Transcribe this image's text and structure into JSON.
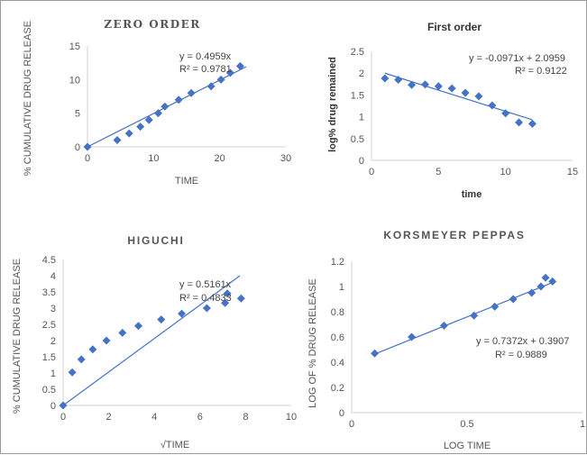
{
  "chart_data": [
    {
      "id": "zero",
      "type": "scatter",
      "title": "ZERO ORDER",
      "xlabel": "TIME",
      "ylabel": "% CUMULATIVE DRUG RELEASE",
      "xlim": [
        0,
        30
      ],
      "ylim": [
        0,
        15
      ],
      "xticks": [
        "0",
        "10",
        "20",
        "30"
      ],
      "yticks": [
        "0",
        "5",
        "10",
        "15"
      ],
      "series": [
        {
          "x": [
            0,
            4.5,
            6.3,
            8,
            9.3,
            10.7,
            11.7,
            13.8,
            15.7,
            18.7,
            20.2,
            21.6,
            23.1
          ],
          "y": [
            0,
            1,
            2,
            3,
            4,
            5,
            6,
            7,
            8,
            9,
            10,
            11,
            12
          ]
        }
      ],
      "trendline": {
        "slope": 0.4959,
        "intercept": 0,
        "x_range": [
          0,
          24
        ]
      },
      "equation": "y = 0.4959x",
      "r2": "R² = 0.9781",
      "grid": false
    },
    {
      "id": "first",
      "type": "scatter",
      "title": "First order",
      "xlabel": "time",
      "ylabel": "log% drug remained",
      "xlim": [
        0,
        15
      ],
      "ylim": [
        0,
        2.5
      ],
      "xticks": [
        "0",
        "5",
        "10",
        "15"
      ],
      "yticks": [
        "0",
        "0.5",
        "1",
        "1.5",
        "2",
        "2.5"
      ],
      "series": [
        {
          "x": [
            1,
            2,
            3,
            4,
            5,
            6,
            7,
            8,
            9,
            10,
            11,
            12
          ],
          "y": [
            1.88,
            1.85,
            1.73,
            1.74,
            1.7,
            1.65,
            1.55,
            1.47,
            1.26,
            1.08,
            0.87,
            0.84
          ]
        }
      ],
      "trendline": {
        "slope": -0.0971,
        "intercept": 2.0959,
        "x_range": [
          1,
          12
        ]
      },
      "equation": "y = -0.0971x + 2.0959",
      "r2": "R² = 0.9122",
      "grid": false
    },
    {
      "id": "higuchi",
      "type": "scatter",
      "title": "HIGUCHI",
      "xlabel": "√TIME",
      "ylabel": "% CUMULATIVE DRUG RELEASE",
      "xlim": [
        0,
        10
      ],
      "ylim": [
        0,
        4.5
      ],
      "xticks": [
        "0",
        "2",
        "4",
        "6",
        "8",
        "10"
      ],
      "yticks": [
        "0",
        "0.5",
        "1",
        "1.5",
        "2",
        "2.5",
        "3",
        "3.5",
        "4",
        "4.5"
      ],
      "series": [
        {
          "x": [
            0,
            0.4,
            0.8,
            1.3,
            1.9,
            2.6,
            3.3,
            4.3,
            5.2,
            6.3,
            7.1,
            7.2,
            7.8
          ],
          "y": [
            0,
            1.02,
            1.42,
            1.73,
            2.0,
            2.24,
            2.45,
            2.65,
            2.83,
            3.0,
            3.16,
            3.45,
            3.3
          ]
        }
      ],
      "trendline": {
        "slope": 0.5161,
        "intercept": 0,
        "x_range": [
          0,
          7.75
        ]
      },
      "equation": "y = 0.5161x",
      "r2": "R² = 0.4833",
      "grid": false
    },
    {
      "id": "korsmeyer",
      "type": "scatter",
      "title": "KORSMEYER PEPPAS",
      "xlabel": "LOG TIME",
      "ylabel": "LOG OF % DRUG RELEASE",
      "xlim": [
        0,
        1
      ],
      "ylim": [
        0,
        1.2
      ],
      "xticks": [
        "0",
        "0.5",
        "1"
      ],
      "yticks": [
        "0",
        "0.2",
        "0.4",
        "0.6",
        "0.8",
        "1",
        "1.2"
      ],
      "series": [
        {
          "x": [
            0.1,
            0.26,
            0.4,
            0.53,
            0.62,
            0.7,
            0.78,
            0.82,
            0.84,
            0.87
          ],
          "y": [
            0.47,
            0.6,
            0.69,
            0.77,
            0.84,
            0.9,
            0.95,
            1.0,
            1.07,
            1.04
          ]
        }
      ],
      "trendline": {
        "slope": 0.7372,
        "intercept": 0.3907,
        "x_range": [
          0.1,
          0.87
        ]
      },
      "equation": "y = 0.7372x + 0.3907",
      "r2": "R² = 0.9889",
      "grid": false
    }
  ],
  "colors": {
    "marker": "#4472C4",
    "trendline": "#4472C4",
    "axis": "#d0d0d0",
    "text": "#555555"
  }
}
